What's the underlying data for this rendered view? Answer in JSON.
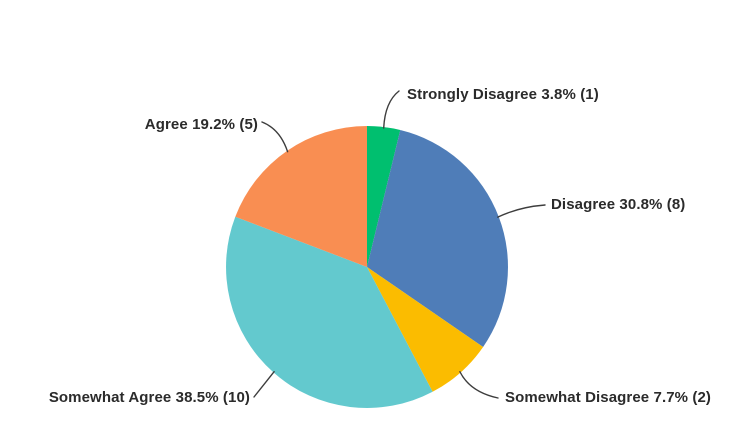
{
  "chart_data": {
    "type": "pie",
    "categories": [
      "Strongly Disagree",
      "Disagree",
      "Somewhat Disagree",
      "Somewhat Agree",
      "Agree"
    ],
    "values": [
      3.8,
      30.8,
      7.7,
      38.5,
      19.2
    ],
    "counts": [
      1,
      8,
      2,
      10,
      5
    ],
    "labels": [
      "Strongly Disagree 3.8% (1)",
      "Disagree 30.8% (8)",
      "Somewhat Disagree 7.7% (2)",
      "Somewhat Agree 38.5% (10)",
      "Agree 19.2% (5)"
    ],
    "colors": [
      "#00bf6f",
      "#4f7db8",
      "#fbbc00",
      "#63c9ce",
      "#f98e52"
    ],
    "start_angle_deg": 0,
    "direction": "clockwise",
    "legend": "none",
    "label_style": "outside-with-leader-lines",
    "background": "#ffffff",
    "label_text_color": "#2b2b2b",
    "leader_line_color": "#3d3d3d"
  }
}
